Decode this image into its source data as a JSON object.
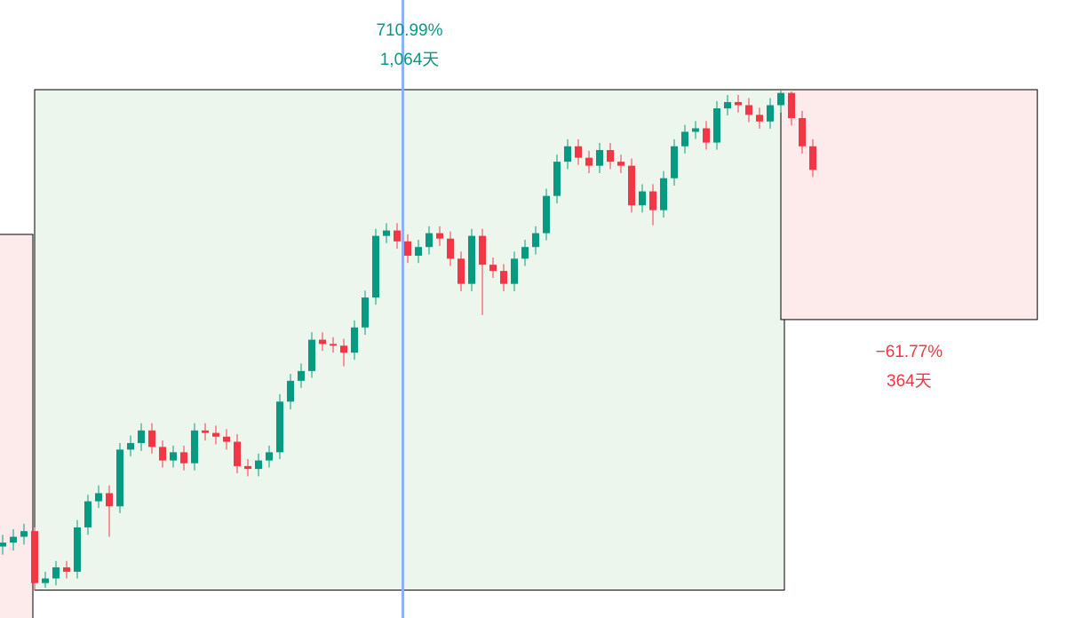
{
  "chart_data": {
    "type": "candlestick",
    "log_scale": true,
    "ylim": [
      0.89,
      11.8
    ],
    "up_color": "#089981",
    "down_color": "#f23645",
    "open": [
      1.2,
      1.22,
      1.25,
      1.28,
      1.03,
      1.05,
      1.1,
      1.08,
      1.3,
      1.45,
      1.5,
      1.42,
      1.8,
      1.85,
      1.95,
      1.82,
      1.72,
      1.78,
      1.7,
      1.95,
      1.93,
      1.9,
      1.86,
      1.68,
      1.66,
      1.72,
      1.78,
      2.2,
      2.4,
      2.5,
      2.85,
      2.8,
      2.78,
      2.7,
      3.0,
      3.4,
      4.4,
      4.5,
      4.3,
      4.05,
      4.2,
      4.45,
      4.35,
      4.0,
      3.6,
      4.4,
      3.9,
      3.8,
      3.6,
      4.0,
      4.2,
      4.45,
      5.2,
      6.0,
      6.4,
      6.1,
      5.9,
      6.3,
      6.0,
      5.9,
      5.0,
      5.3,
      4.9,
      5.6,
      6.4,
      6.8,
      6.9,
      6.5,
      7.5,
      7.7,
      7.6,
      7.3,
      7.1,
      7.6,
      8.0,
      7.2,
      6.4
    ],
    "high": [
      1.26,
      1.29,
      1.32,
      1.3,
      1.08,
      1.13,
      1.13,
      1.34,
      1.49,
      1.55,
      1.55,
      1.85,
      1.91,
      2.01,
      2.01,
      1.87,
      1.83,
      1.83,
      2.01,
      2.01,
      1.99,
      1.96,
      1.92,
      1.73,
      1.77,
      1.83,
      2.27,
      2.47,
      2.58,
      2.94,
      2.94,
      2.88,
      2.86,
      3.09,
      3.5,
      4.53,
      4.64,
      4.64,
      4.43,
      4.33,
      4.58,
      4.58,
      4.48,
      4.12,
      4.53,
      4.53,
      4.02,
      3.91,
      4.12,
      4.33,
      4.58,
      5.36,
      6.18,
      6.59,
      6.59,
      6.28,
      6.49,
      6.49,
      6.18,
      6.08,
      5.46,
      5.46,
      5.77,
      6.59,
      7.0,
      7.11,
      7.11,
      7.73,
      7.93,
      7.93,
      7.83,
      7.52,
      7.83,
      8.11,
      8.05,
      7.42,
      6.59
    ],
    "low": [
      1.16,
      1.18,
      1.21,
      1.0,
      1.01,
      1.02,
      1.05,
      1.05,
      1.26,
      1.41,
      1.25,
      1.38,
      1.75,
      1.79,
      1.77,
      1.67,
      1.67,
      1.65,
      1.65,
      1.87,
      1.84,
      1.8,
      1.63,
      1.61,
      1.61,
      1.67,
      1.73,
      2.13,
      2.33,
      2.43,
      2.72,
      2.7,
      2.55,
      2.62,
      2.91,
      3.3,
      4.27,
      4.17,
      3.93,
      3.93,
      4.07,
      4.22,
      3.88,
      3.49,
      3.49,
      3.16,
      3.69,
      3.49,
      3.49,
      3.88,
      4.07,
      4.32,
      5.04,
      5.82,
      5.92,
      5.72,
      5.72,
      5.82,
      5.72,
      4.85,
      4.85,
      4.6,
      4.75,
      5.43,
      6.21,
      6.6,
      6.31,
      6.31,
      7.28,
      7.37,
      7.08,
      6.89,
      6.89,
      7.37,
      6.98,
      6.21,
      5.63
    ],
    "close": [
      1.22,
      1.25,
      1.28,
      1.03,
      1.05,
      1.1,
      1.08,
      1.3,
      1.45,
      1.5,
      1.42,
      1.8,
      1.85,
      1.95,
      1.82,
      1.72,
      1.78,
      1.7,
      1.95,
      1.93,
      1.9,
      1.86,
      1.68,
      1.66,
      1.72,
      1.78,
      2.2,
      2.4,
      2.5,
      2.85,
      2.8,
      2.78,
      2.7,
      3.0,
      3.4,
      4.4,
      4.5,
      4.3,
      4.05,
      4.2,
      4.45,
      4.35,
      4.0,
      3.6,
      4.4,
      3.9,
      3.8,
      3.6,
      4.0,
      4.2,
      4.45,
      5.2,
      6.0,
      6.4,
      6.1,
      5.9,
      6.3,
      6.0,
      5.9,
      5.0,
      5.3,
      4.9,
      5.6,
      6.4,
      6.8,
      6.9,
      6.5,
      7.5,
      7.7,
      7.6,
      7.3,
      7.1,
      7.6,
      8.0,
      7.2,
      6.4,
      5.8
    ],
    "measures": [
      {
        "start_index": 3,
        "start_price": 1.0,
        "change": 710.99,
        "change_label": "710.99%",
        "days": 1064,
        "days_label": "1,064天",
        "color": "#089981",
        "fill": "#edf6ec"
      },
      {
        "start_index": 73,
        "start_price": 8.11,
        "change": -61.77,
        "change_label": "−61.77%",
        "days": 364,
        "days_label": "364天",
        "color": "#f23645",
        "fill": "#fdebec"
      }
    ]
  }
}
